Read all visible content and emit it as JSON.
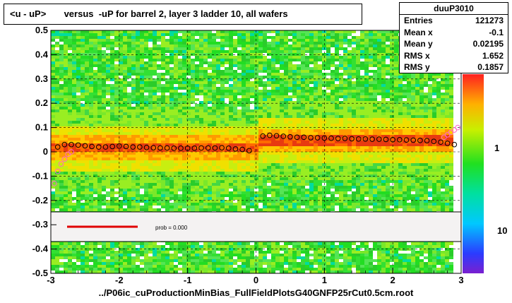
{
  "title": "<u - uP>       versus  -uP for barrel 2, layer 3 ladder 10, all wafers",
  "footer": "../P06ic_cuProductionMinBias_FullFieldPlotsG40GNFP25rCut0.5cm.root",
  "stats": {
    "name": "duuP3010",
    "rows": [
      {
        "label": "Entries",
        "value": "121273"
      },
      {
        "label": "Mean x",
        "value": "-0.1"
      },
      {
        "label": "Mean y",
        "value": "0.02195"
      },
      {
        "label": "RMS x",
        "value": "1.652"
      },
      {
        "label": "RMS y",
        "value": "0.1857"
      }
    ]
  },
  "legend": {
    "text": "prob = 0.000",
    "line_color": "#e00000"
  },
  "colorbar": {
    "labels": [
      "1",
      "10"
    ]
  },
  "chart_data": {
    "type": "scatter",
    "xlim": [
      -3,
      3
    ],
    "ylim": [
      -0.5,
      0.5
    ],
    "x_ticks": [
      "-3",
      "-2",
      "-1",
      "0",
      "1",
      "2",
      "3"
    ],
    "y_ticks": [
      "-0.5",
      "-0.4",
      "-0.3",
      "-0.2",
      "-0.1",
      "0",
      "0.1",
      "0.2",
      "0.3",
      "0.4",
      "0.5"
    ],
    "grid": true,
    "series": [
      {
        "marker": "open-circle-black",
        "x": [
          -2.9,
          -2.8,
          -2.7,
          -2.6,
          -2.5,
          -2.4,
          -2.3,
          -2.2,
          -2.1,
          -2.0,
          -1.9,
          -1.8,
          -1.7,
          -1.6,
          -1.5,
          -1.4,
          -1.3,
          -1.2,
          -1.1,
          -1.0,
          -0.9,
          -0.8,
          -0.7,
          -0.6,
          -0.5,
          -0.4,
          -0.3,
          -0.2,
          -0.1,
          0.1,
          0.2,
          0.3,
          0.4,
          0.5,
          0.6,
          0.7,
          0.8,
          0.9,
          1.0,
          1.1,
          1.2,
          1.3,
          1.4,
          1.5,
          1.6,
          1.7,
          1.8,
          1.9,
          2.0,
          2.1,
          2.2,
          2.3,
          2.4,
          2.5,
          2.6,
          2.7,
          2.8,
          2.9
        ],
        "y": [
          0.02,
          0.03,
          0.03,
          0.028,
          0.025,
          0.022,
          0.02,
          0.02,
          0.022,
          0.024,
          0.022,
          0.02,
          0.02,
          0.018,
          0.017,
          0.016,
          0.016,
          0.015,
          0.015,
          0.015,
          0.015,
          0.016,
          0.016,
          0.016,
          0.017,
          0.015,
          0.012,
          0.01,
          0.005,
          0.065,
          0.068,
          0.066,
          0.064,
          0.062,
          0.06,
          0.06,
          0.058,
          0.058,
          0.057,
          0.056,
          0.055,
          0.055,
          0.054,
          0.053,
          0.053,
          0.052,
          0.052,
          0.051,
          0.05,
          0.05,
          0.049,
          0.048,
          0.047,
          0.046,
          0.043,
          0.04,
          0.035,
          0.03
        ]
      },
      {
        "marker": "open-circle-pink",
        "x": [
          -2.95,
          -2.9,
          -2.85,
          -2.8,
          -2.75,
          -2.7,
          2.75,
          2.8,
          2.85,
          2.9,
          2.95
        ],
        "y": [
          -0.13,
          -0.08,
          -0.05,
          -0.03,
          -0.01,
          0.0,
          0.06,
          0.07,
          0.08,
          0.09,
          0.1
        ]
      }
    ]
  }
}
